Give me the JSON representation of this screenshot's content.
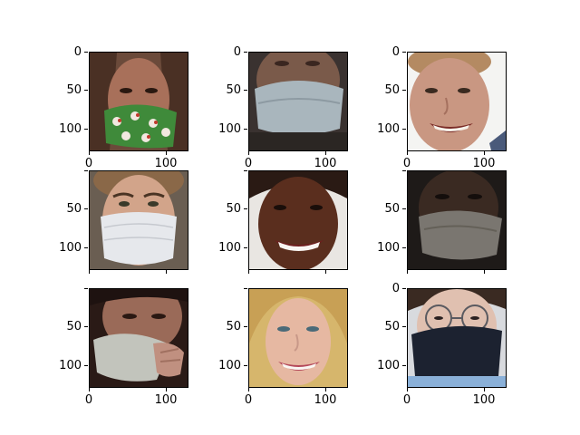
{
  "figure": {
    "subplots": [
      {
        "description_label": "face with green santa-print mask",
        "mask": "green-pattern"
      },
      {
        "description_label": "blurred face with light blue mask",
        "mask": "blue"
      },
      {
        "description_label": "smiling face without mask",
        "mask": "none"
      },
      {
        "description_label": "face with white surgical mask",
        "mask": "white"
      },
      {
        "description_label": "smiling face without mask",
        "mask": "none"
      },
      {
        "description_label": "dark blurred face with grey mask",
        "mask": "grey"
      },
      {
        "description_label": "face with mask held by hand",
        "mask": "white"
      },
      {
        "description_label": "blonde smiling face without mask",
        "mask": "none"
      },
      {
        "description_label": "face with glasses and black mask",
        "mask": "black"
      }
    ],
    "y_ticks": [
      "0",
      "50",
      "100"
    ],
    "x_ticks": [
      "0",
      "100"
    ]
  }
}
